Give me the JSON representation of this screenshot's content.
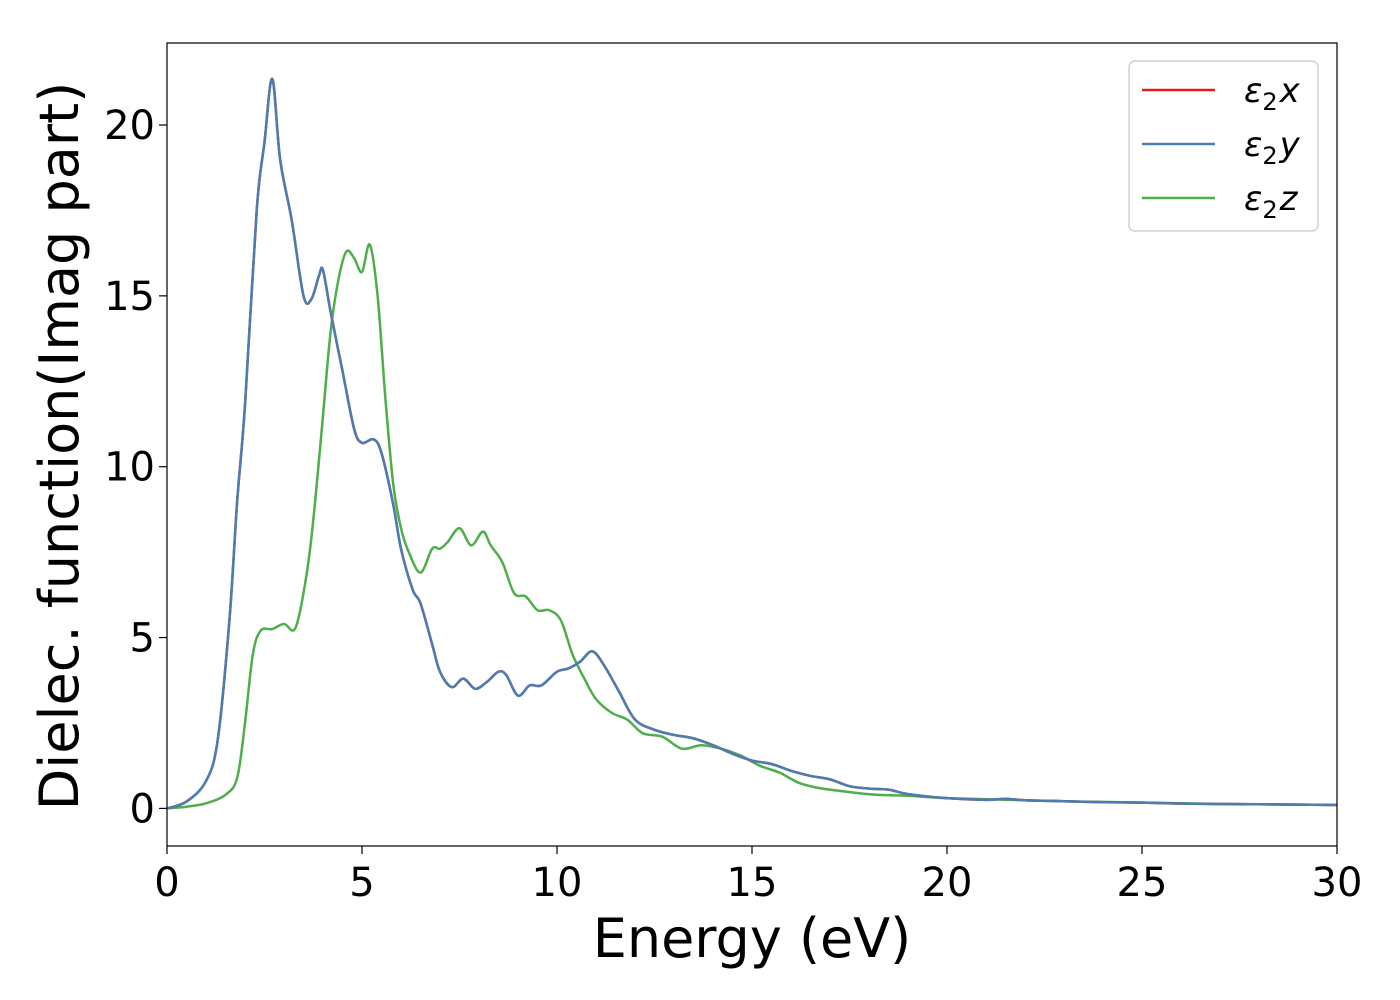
{
  "chart_data": {
    "type": "line",
    "title": "",
    "xlabel": "Energy (eV)",
    "ylabel": "Dielec. function(Imag part)",
    "xlim": [
      0,
      30
    ],
    "ylim": [
      -1.1,
      22.4
    ],
    "xticks": [
      0,
      5,
      10,
      15,
      20,
      25,
      30
    ],
    "yticks": [
      0,
      5,
      10,
      15,
      20
    ],
    "xtick_labels": [
      "0",
      "5",
      "10",
      "15",
      "20",
      "25",
      "30"
    ],
    "ytick_labels": [
      "0",
      "5",
      "10",
      "15",
      "20"
    ],
    "grid": false,
    "legend_position": "top-right",
    "series": [
      {
        "name": "ε2x",
        "legend": {
          "base": "ε",
          "sub": "2",
          "var": "x"
        },
        "color": "#e41a1c",
        "x": [
          0,
          0.5,
          1.0,
          1.3,
          1.6,
          1.8,
          2.0,
          2.3,
          2.5,
          2.7,
          2.9,
          3.2,
          3.5,
          3.7,
          3.9,
          4.0,
          4.2,
          4.5,
          4.8,
          5.0,
          5.3,
          5.5,
          5.8,
          6.0,
          6.3,
          6.5,
          6.8,
          7.0,
          7.3,
          7.6,
          7.9,
          8.2,
          8.5,
          8.7,
          9.0,
          9.3,
          9.6,
          10.0,
          10.3,
          10.6,
          10.9,
          11.2,
          11.6,
          12.0,
          12.5,
          13.0,
          13.5,
          14.0,
          14.5,
          15.0,
          15.5,
          16.0,
          16.5,
          17.0,
          17.5,
          18.0,
          18.5,
          19.0,
          20.0,
          21.0,
          21.5,
          22.0,
          23.0,
          24.0,
          25.0,
          26.0,
          27.0,
          28.0,
          29.0,
          30.0
        ],
        "values": [
          0.0,
          0.2,
          0.8,
          2.0,
          5.5,
          9.0,
          11.8,
          17.5,
          19.5,
          21.35,
          19.0,
          17.2,
          15.0,
          14.9,
          15.6,
          15.75,
          14.5,
          12.8,
          11.1,
          10.7,
          10.8,
          10.4,
          8.9,
          7.6,
          6.4,
          6.0,
          4.8,
          4.0,
          3.55,
          3.8,
          3.5,
          3.7,
          4.0,
          3.9,
          3.3,
          3.6,
          3.6,
          4.0,
          4.1,
          4.3,
          4.6,
          4.2,
          3.4,
          2.6,
          2.3,
          2.15,
          2.05,
          1.85,
          1.6,
          1.4,
          1.3,
          1.1,
          0.95,
          0.85,
          0.65,
          0.58,
          0.55,
          0.42,
          0.3,
          0.25,
          0.28,
          0.24,
          0.21,
          0.18,
          0.17,
          0.14,
          0.13,
          0.12,
          0.11,
          0.1
        ]
      },
      {
        "name": "ε2y",
        "legend": {
          "base": "ε",
          "sub": "2",
          "var": "y"
        },
        "color": "#4a7db4",
        "x": [
          0,
          0.5,
          1.0,
          1.3,
          1.6,
          1.8,
          2.0,
          2.3,
          2.5,
          2.7,
          2.9,
          3.2,
          3.5,
          3.7,
          3.9,
          4.0,
          4.2,
          4.5,
          4.8,
          5.0,
          5.3,
          5.5,
          5.8,
          6.0,
          6.3,
          6.5,
          6.8,
          7.0,
          7.3,
          7.6,
          7.9,
          8.2,
          8.5,
          8.7,
          9.0,
          9.3,
          9.6,
          10.0,
          10.3,
          10.6,
          10.9,
          11.2,
          11.6,
          12.0,
          12.5,
          13.0,
          13.5,
          14.0,
          14.5,
          15.0,
          15.5,
          16.0,
          16.5,
          17.0,
          17.5,
          18.0,
          18.5,
          19.0,
          20.0,
          21.0,
          21.5,
          22.0,
          23.0,
          24.0,
          25.0,
          26.0,
          27.0,
          28.0,
          29.0,
          30.0
        ],
        "values": [
          0.0,
          0.2,
          0.8,
          2.0,
          5.5,
          9.0,
          11.8,
          17.5,
          19.5,
          21.35,
          19.0,
          17.2,
          15.0,
          14.9,
          15.6,
          15.75,
          14.5,
          12.8,
          11.1,
          10.7,
          10.8,
          10.4,
          8.9,
          7.6,
          6.4,
          6.0,
          4.8,
          4.0,
          3.55,
          3.8,
          3.5,
          3.7,
          4.0,
          3.9,
          3.3,
          3.6,
          3.6,
          4.0,
          4.1,
          4.3,
          4.6,
          4.2,
          3.4,
          2.6,
          2.3,
          2.15,
          2.05,
          1.85,
          1.6,
          1.4,
          1.3,
          1.1,
          0.95,
          0.85,
          0.65,
          0.58,
          0.55,
          0.42,
          0.3,
          0.25,
          0.28,
          0.24,
          0.21,
          0.18,
          0.17,
          0.14,
          0.13,
          0.12,
          0.11,
          0.1
        ]
      },
      {
        "name": "ε2z",
        "legend": {
          "base": "ε",
          "sub": "2",
          "var": "z"
        },
        "color": "#4daf4a",
        "x": [
          0,
          0.5,
          1.0,
          1.5,
          1.8,
          2.0,
          2.2,
          2.4,
          2.7,
          3.0,
          3.3,
          3.6,
          3.8,
          4.0,
          4.2,
          4.4,
          4.6,
          4.8,
          5.0,
          5.2,
          5.4,
          5.6,
          5.8,
          6.0,
          6.2,
          6.5,
          6.8,
          7.0,
          7.2,
          7.5,
          7.8,
          8.1,
          8.3,
          8.6,
          8.9,
          9.2,
          9.5,
          9.8,
          10.1,
          10.4,
          10.7,
          11.0,
          11.4,
          11.8,
          12.2,
          12.7,
          13.2,
          13.7,
          14.2,
          14.7,
          15.2,
          15.7,
          16.2,
          16.7,
          17.2,
          17.7,
          18.2,
          19.0,
          20.0,
          21.0,
          22.0,
          23.0,
          24.0,
          25.0,
          26.0,
          27.0,
          28.0,
          29.0,
          30.0
        ],
        "values": [
          0.0,
          0.05,
          0.15,
          0.4,
          0.9,
          2.5,
          4.5,
          5.2,
          5.25,
          5.4,
          5.3,
          7.0,
          9.0,
          11.5,
          14.0,
          15.5,
          16.3,
          16.1,
          15.7,
          16.5,
          15.0,
          12.0,
          9.5,
          8.2,
          7.5,
          6.9,
          7.6,
          7.6,
          7.8,
          8.2,
          7.7,
          8.1,
          7.7,
          7.2,
          6.3,
          6.2,
          5.8,
          5.8,
          5.5,
          4.5,
          3.8,
          3.2,
          2.8,
          2.6,
          2.2,
          2.1,
          1.75,
          1.85,
          1.75,
          1.55,
          1.25,
          1.05,
          0.75,
          0.6,
          0.52,
          0.45,
          0.4,
          0.37,
          0.3,
          0.27,
          0.24,
          0.21,
          0.19,
          0.17,
          0.15,
          0.13,
          0.12,
          0.11,
          0.1
        ]
      }
    ]
  }
}
